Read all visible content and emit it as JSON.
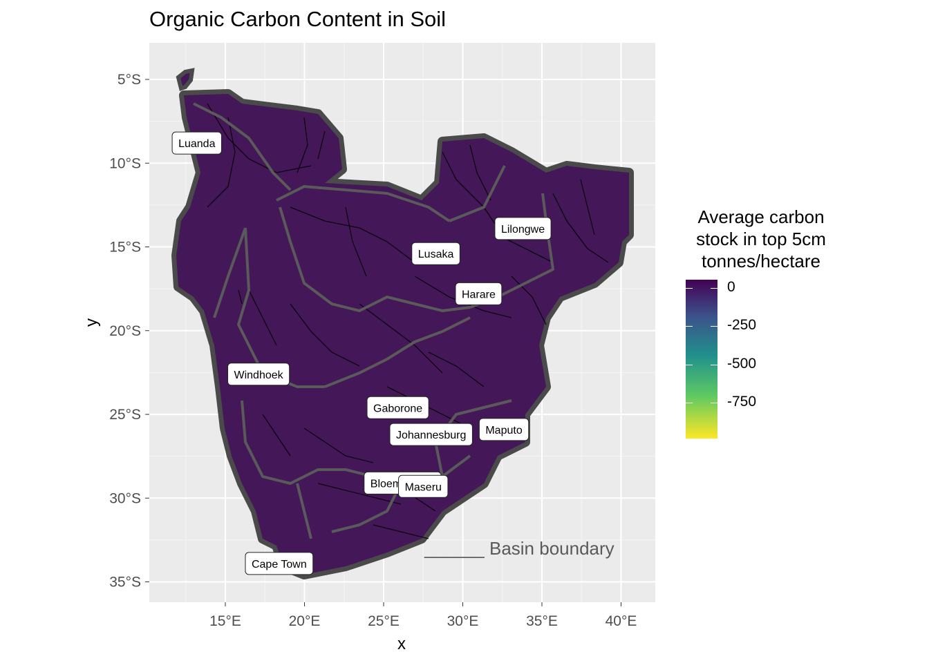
{
  "title": "Organic Carbon Content in Soil",
  "axes": {
    "x_label": "x",
    "y_label": "y",
    "x_ticks": [
      "15°E",
      "20°E",
      "25°E",
      "30°E",
      "35°E",
      "40°E"
    ],
    "y_ticks": [
      "5°S",
      "10°S",
      "15°S",
      "20°S",
      "25°S",
      "30°S",
      "35°S"
    ]
  },
  "legend": {
    "title_lines": [
      "Average carbon",
      "stock in top 5cm",
      "tonnes/hectare"
    ],
    "labels": [
      "0",
      "-250",
      "-500",
      "-750"
    ],
    "colors": [
      "#440154",
      "#3b528b",
      "#21918c",
      "#5ec962",
      "#fde725"
    ]
  },
  "annotation": "______ Basin boundary",
  "cities": [
    {
      "name": "Luanda",
      "lon": 13.2,
      "lat": -8.8
    },
    {
      "name": "Lilongwe",
      "lon": 33.8,
      "lat": -13.9
    },
    {
      "name": "Lusaka",
      "lon": 28.3,
      "lat": -15.4
    },
    {
      "name": "Harare",
      "lon": 31.0,
      "lat": -17.8
    },
    {
      "name": "Windhoek",
      "lon": 17.1,
      "lat": -22.6
    },
    {
      "name": "Gaborone",
      "lon": 25.9,
      "lat": -24.6
    },
    {
      "name": "Johannesburg",
      "lon": 28.0,
      "lat": -26.2
    },
    {
      "name": "Maputo",
      "lon": 32.6,
      "lat": -25.9
    },
    {
      "name": "Bloemfontein",
      "lon": 26.2,
      "lat": -29.1
    },
    {
      "name": "Maseru",
      "lon": 27.5,
      "lat": -29.3
    },
    {
      "name": "Cape Town",
      "lon": 18.4,
      "lat": -33.9
    }
  ],
  "colors": {
    "panel_bg": "#ebebeb",
    "grid": "#ffffff",
    "land_fill": "#441758",
    "basin_boundary": "#555555",
    "rivers": "#000000"
  }
}
